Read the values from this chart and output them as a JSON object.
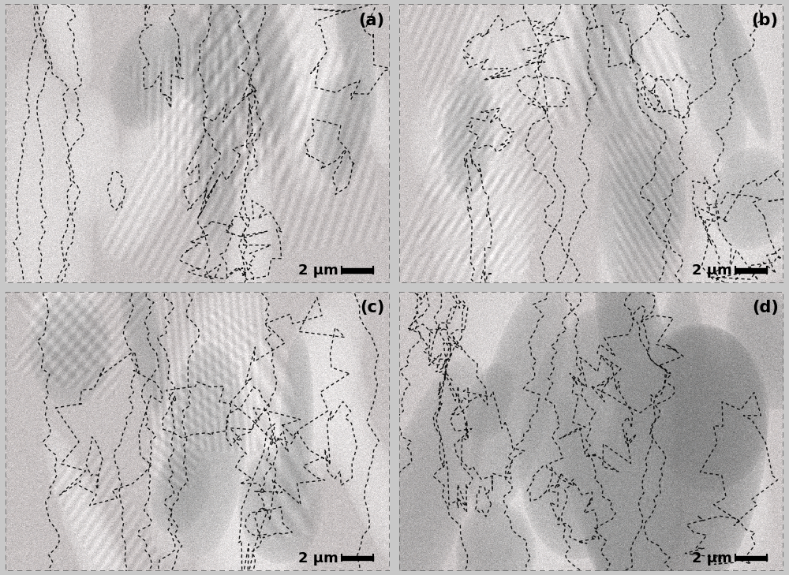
{
  "panels": [
    "(a)",
    "(b)",
    "(c)",
    "(d)"
  ],
  "scale_label": "2 μm",
  "label_fontsize": 15,
  "scale_fontsize": 13,
  "figure_bg": "#c8c8c8",
  "outer_gap_color": "#c8c8c8",
  "panel_border_color": "#666666",
  "panel_border_lw": 1.2,
  "scale_bar_color": "#000000",
  "bg_base_gray": [
    0.76,
    0.78,
    0.76,
    0.78
  ],
  "grain_light_shade": [
    0.9,
    0.88,
    0.9,
    0.86
  ],
  "grain_dark_shade": [
    0.62,
    0.64,
    0.62,
    0.58
  ],
  "noise_std": 0.035,
  "pink_tint": 0.02
}
